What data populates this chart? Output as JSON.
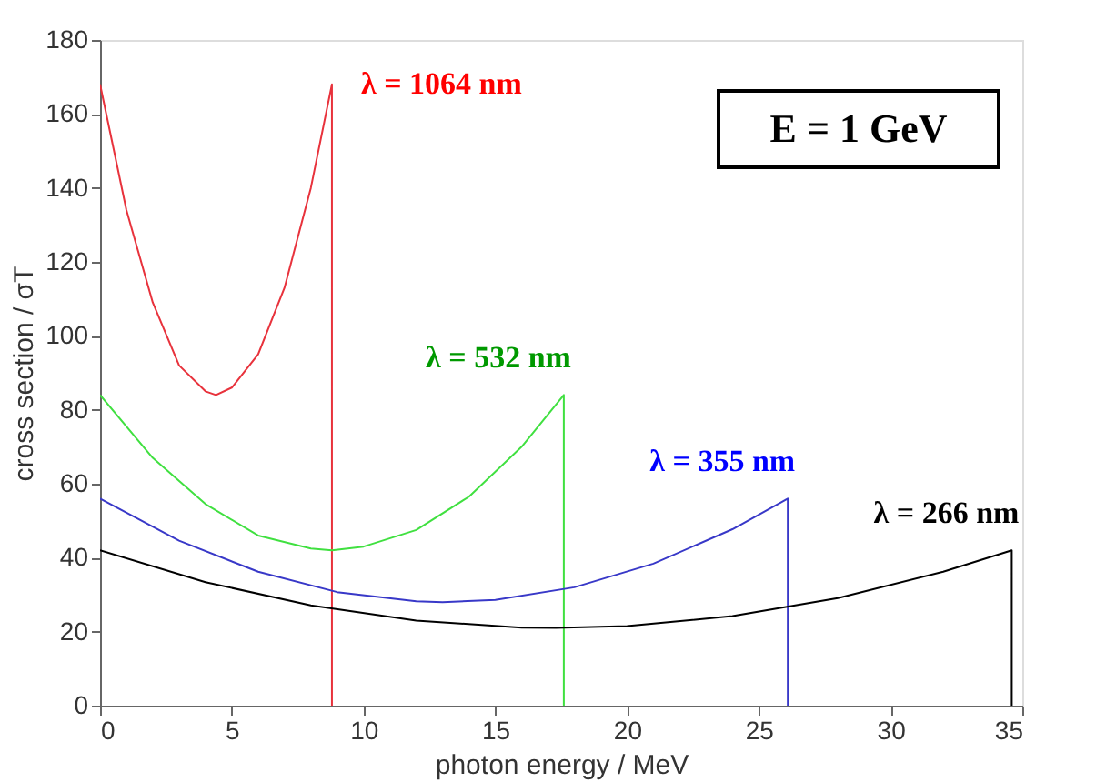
{
  "chart_data": {
    "type": "line",
    "xlabel": "photon energy / MeV",
    "ylabel": "cross section / σT",
    "xlim": [
      0,
      35
    ],
    "xticks": [
      0,
      5,
      10,
      15,
      20,
      25,
      30,
      35
    ],
    "ylim": [
      0,
      180
    ],
    "yticks": [
      0,
      20,
      40,
      60,
      80,
      100,
      120,
      140,
      160,
      180
    ],
    "grid": false,
    "legend": false,
    "series": [
      {
        "name": "λ = 1064 nm",
        "color": "#e8323c",
        "x": [
          0,
          1,
          2,
          3,
          4,
          4.4,
          5,
          6,
          7,
          8,
          8.8,
          8.8
        ],
        "values": [
          168,
          134,
          109,
          92,
          85,
          84,
          86,
          95,
          113,
          140,
          168,
          0
        ]
      },
      {
        "name": "λ = 532 nm",
        "color": "#40e040",
        "x": [
          0,
          2,
          4,
          6,
          8,
          8.8,
          10,
          12,
          14,
          16,
          17.6,
          17.6
        ],
        "values": [
          84,
          67,
          54.5,
          46,
          42.5,
          42,
          43,
          47.5,
          56.5,
          70,
          84,
          0
        ]
      },
      {
        "name": "λ = 355 nm",
        "color": "#3838c8",
        "x": [
          0,
          3,
          6,
          9,
          12,
          13,
          15,
          18,
          21,
          24,
          26.1,
          26.1
        ],
        "values": [
          56,
          44.6,
          36.2,
          30.7,
          28.2,
          28,
          28.6,
          32,
          38.4,
          47.7,
          56,
          0
        ]
      },
      {
        "name": "λ = 266 nm",
        "color": "#000000",
        "x": [
          0,
          4,
          8,
          12,
          16,
          17.3,
          20,
          24,
          28,
          32,
          34.6,
          34.6
        ],
        "values": [
          42,
          33.4,
          27.1,
          23,
          21.1,
          21,
          21.5,
          24.2,
          29.1,
          36.2,
          42,
          0
        ]
      }
    ],
    "annotations": [
      "E = 1 GeV"
    ]
  }
}
